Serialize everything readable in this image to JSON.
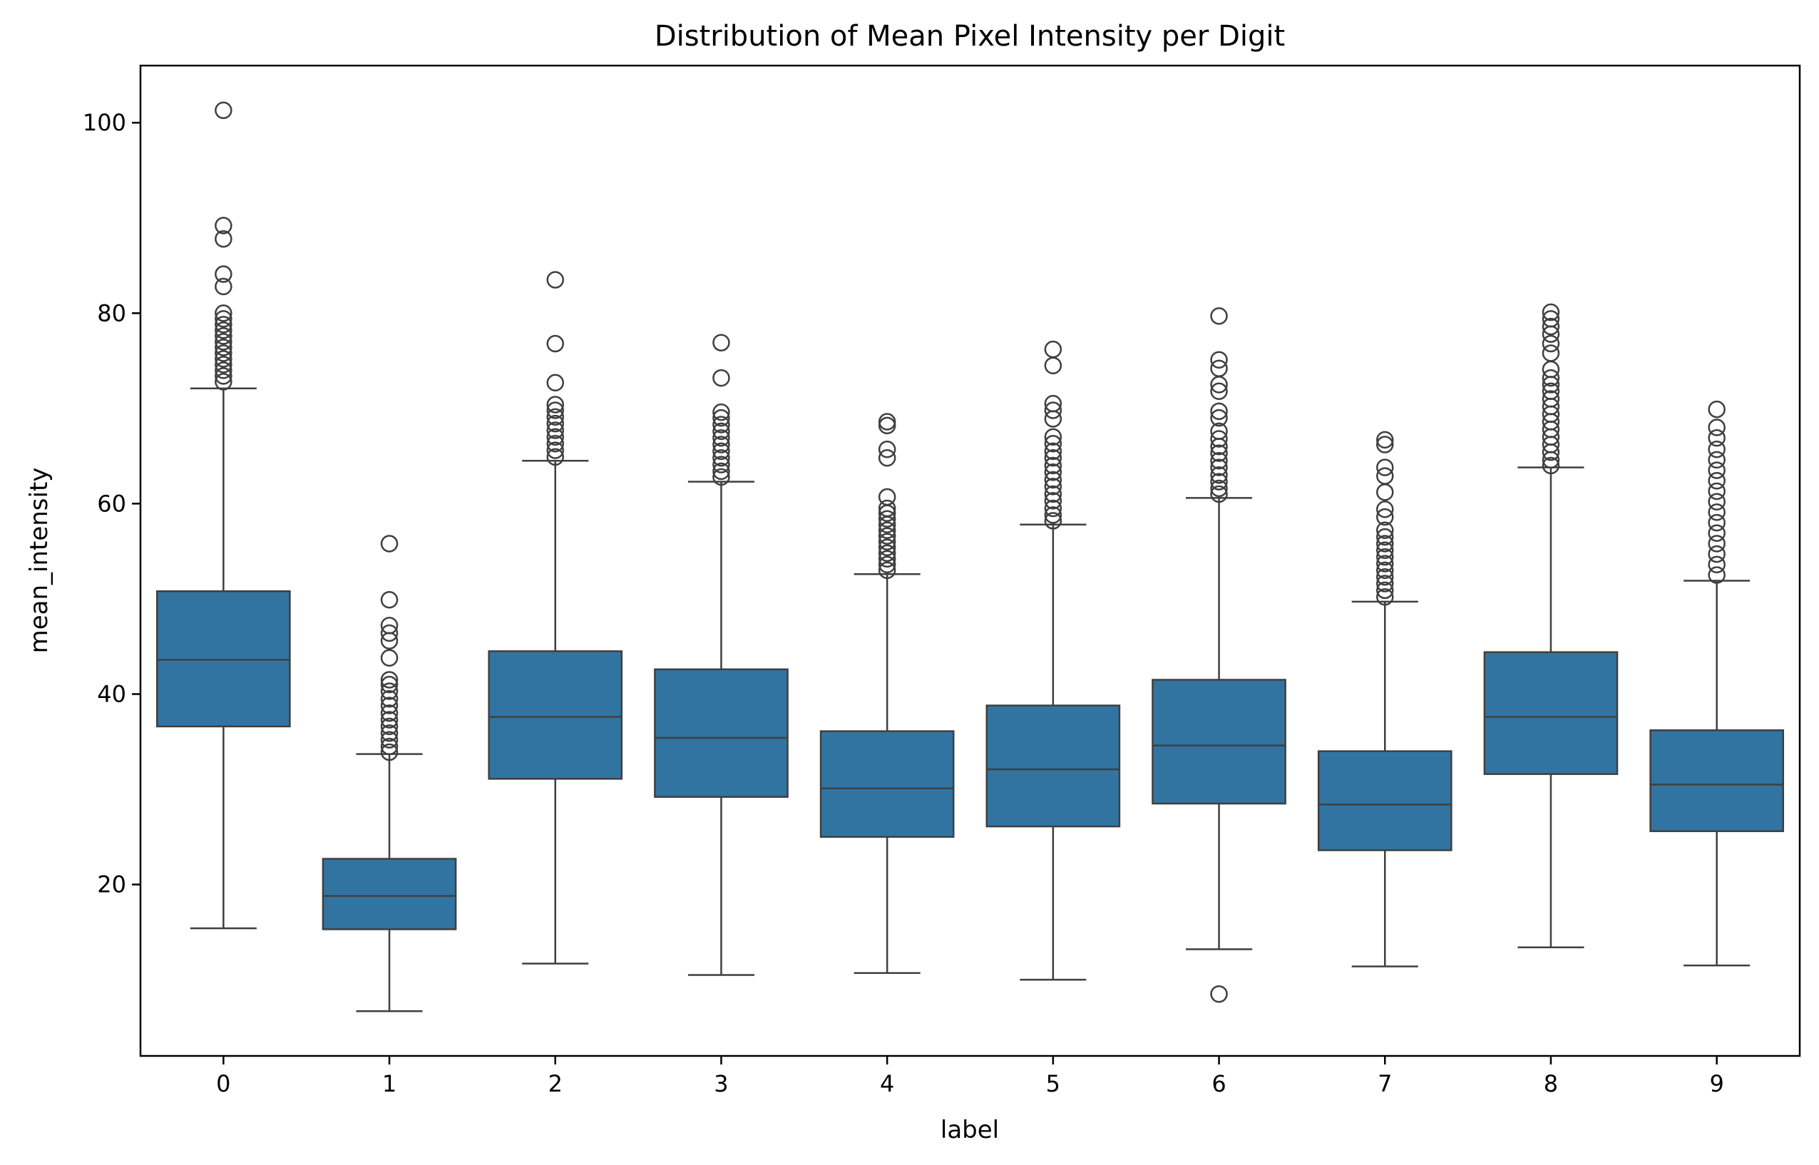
{
  "chart_data": {
    "type": "box",
    "title": "Distribution of Mean Pixel Intensity per Digit",
    "xlabel": "label",
    "ylabel": "mean_intensity",
    "ylim": [
      2,
      106
    ],
    "yticks": [
      20,
      40,
      60,
      80,
      100
    ],
    "grid": false,
    "legend": "none",
    "color": "#3274a1",
    "categories": [
      "0",
      "1",
      "2",
      "3",
      "4",
      "5",
      "6",
      "7",
      "8",
      "9"
    ],
    "boxes": [
      {
        "label": "0",
        "whisker_low": 15.4,
        "q1": 36.6,
        "median": 43.6,
        "q3": 50.8,
        "whisker_high": 72.1,
        "outliers": [
          101.3,
          89.2,
          87.8,
          84.1,
          82.8,
          80.0,
          79.4,
          78.8,
          78.2,
          77.6,
          77.0,
          76.4,
          75.8,
          75.2,
          74.6,
          74.0,
          73.4,
          72.8
        ]
      },
      {
        "label": "1",
        "whisker_low": 6.7,
        "q1": 15.3,
        "median": 18.8,
        "q3": 22.7,
        "whisker_high": 33.7,
        "outliers": [
          55.8,
          49.9,
          47.2,
          46.4,
          45.6,
          43.8,
          41.5,
          41.0,
          40.3,
          39.5,
          38.8,
          38.0,
          37.3,
          36.6,
          35.9,
          35.2,
          34.5,
          33.9
        ]
      },
      {
        "label": "2",
        "whisker_low": 11.7,
        "q1": 31.1,
        "median": 37.6,
        "q3": 44.5,
        "whisker_high": 64.5,
        "outliers": [
          83.5,
          76.8,
          72.7,
          70.4,
          69.8,
          69.1,
          68.4,
          67.7,
          67.0,
          66.3,
          65.6,
          64.9
        ]
      },
      {
        "label": "3",
        "whisker_low": 10.5,
        "q1": 29.2,
        "median": 35.4,
        "q3": 42.6,
        "whisker_high": 62.3,
        "outliers": [
          76.9,
          73.2,
          69.6,
          69.0,
          68.3,
          67.6,
          66.9,
          66.2,
          65.5,
          64.8,
          64.1,
          63.4,
          62.8
        ]
      },
      {
        "label": "4",
        "whisker_low": 10.7,
        "q1": 25.0,
        "median": 30.1,
        "q3": 36.1,
        "whisker_high": 52.6,
        "outliers": [
          68.6,
          68.2,
          65.7,
          64.8,
          60.7,
          59.5,
          59.0,
          58.4,
          57.8,
          57.2,
          56.6,
          56.0,
          55.4,
          54.8,
          54.2,
          53.6,
          53.0
        ]
      },
      {
        "label": "5",
        "whisker_low": 10.0,
        "q1": 26.1,
        "median": 32.1,
        "q3": 38.8,
        "whisker_high": 57.8,
        "outliers": [
          76.2,
          74.5,
          70.5,
          69.8,
          68.9,
          67.0,
          66.3,
          65.5,
          64.8,
          64.0,
          63.3,
          62.5,
          61.8,
          61.0,
          60.3,
          59.5,
          58.8,
          58.2
        ]
      },
      {
        "label": "6",
        "whisker_low": 13.2,
        "q1": 28.5,
        "median": 34.6,
        "q3": 41.5,
        "whisker_high": 60.6,
        "outliers": [
          79.7,
          75.1,
          74.2,
          72.5,
          71.8,
          69.7,
          69.0,
          67.6,
          66.8,
          66.0,
          65.3,
          64.5,
          63.8,
          63.0,
          62.3,
          61.6,
          61.0,
          8.5
        ]
      },
      {
        "label": "7",
        "whisker_low": 11.4,
        "q1": 23.6,
        "median": 28.4,
        "q3": 34.0,
        "whisker_high": 49.7,
        "outliers": [
          66.7,
          66.2,
          63.8,
          62.9,
          61.2,
          59.4,
          58.6,
          57.2,
          56.5,
          55.8,
          55.1,
          54.4,
          53.7,
          53.0,
          52.3,
          51.6,
          50.9,
          50.2
        ]
      },
      {
        "label": "8",
        "whisker_low": 13.4,
        "q1": 31.6,
        "median": 37.6,
        "q3": 44.4,
        "whisker_high": 63.8,
        "outliers": [
          80.1,
          79.4,
          78.6,
          77.8,
          76.8,
          75.8,
          74.1,
          73.2,
          72.5,
          71.8,
          71.0,
          70.2,
          69.4,
          68.6,
          67.8,
          67.0,
          66.2,
          65.4,
          64.6,
          64.0
        ]
      },
      {
        "label": "9",
        "whisker_low": 11.5,
        "q1": 25.6,
        "median": 30.5,
        "q3": 36.2,
        "whisker_high": 51.9,
        "outliers": [
          69.9,
          68.0,
          66.9,
          65.7,
          64.6,
          63.5,
          62.4,
          61.3,
          60.2,
          59.1,
          58.0,
          56.9,
          55.8,
          54.7,
          53.6,
          52.5
        ]
      }
    ]
  }
}
